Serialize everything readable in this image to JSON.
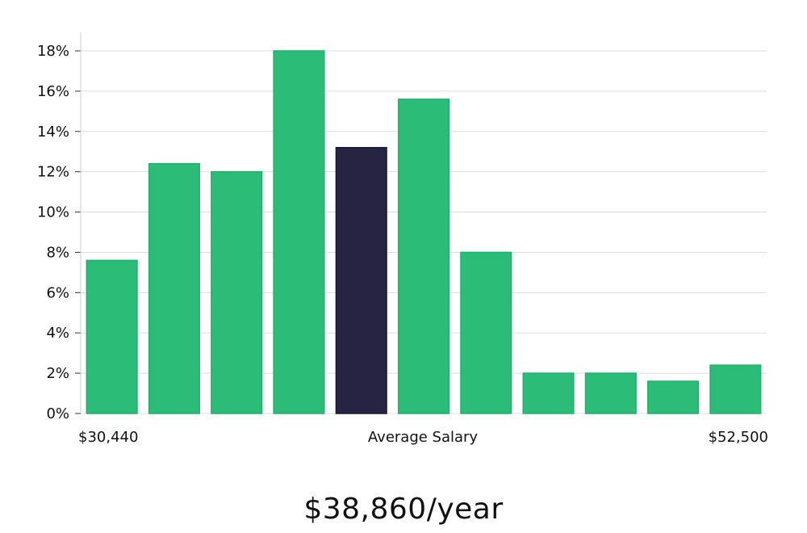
{
  "chart_data": {
    "type": "bar",
    "values": [
      7.6,
      12.4,
      12.0,
      18.0,
      13.2,
      15.6,
      8.0,
      2.0,
      2.0,
      1.6,
      2.4
    ],
    "highlight_index": 4,
    "ylim": [
      0,
      18
    ],
    "yticks": [
      0,
      2,
      4,
      6,
      8,
      10,
      12,
      14,
      16,
      18
    ],
    "ytick_labels": [
      "0%",
      "2%",
      "4%",
      "6%",
      "8%",
      "10%",
      "12%",
      "14%",
      "16%",
      "18%"
    ],
    "grid": true,
    "x_min_label": "$30,440",
    "x_center_label": "Average Salary",
    "x_max_label": "$52,500",
    "colors": {
      "bar": "#2bbd77",
      "bar_edge": "#21b06c",
      "highlight": "#272343",
      "grid": "#dddddd",
      "axis": "#cccccc"
    }
  },
  "summary": {
    "salary": "$38,860/year"
  }
}
